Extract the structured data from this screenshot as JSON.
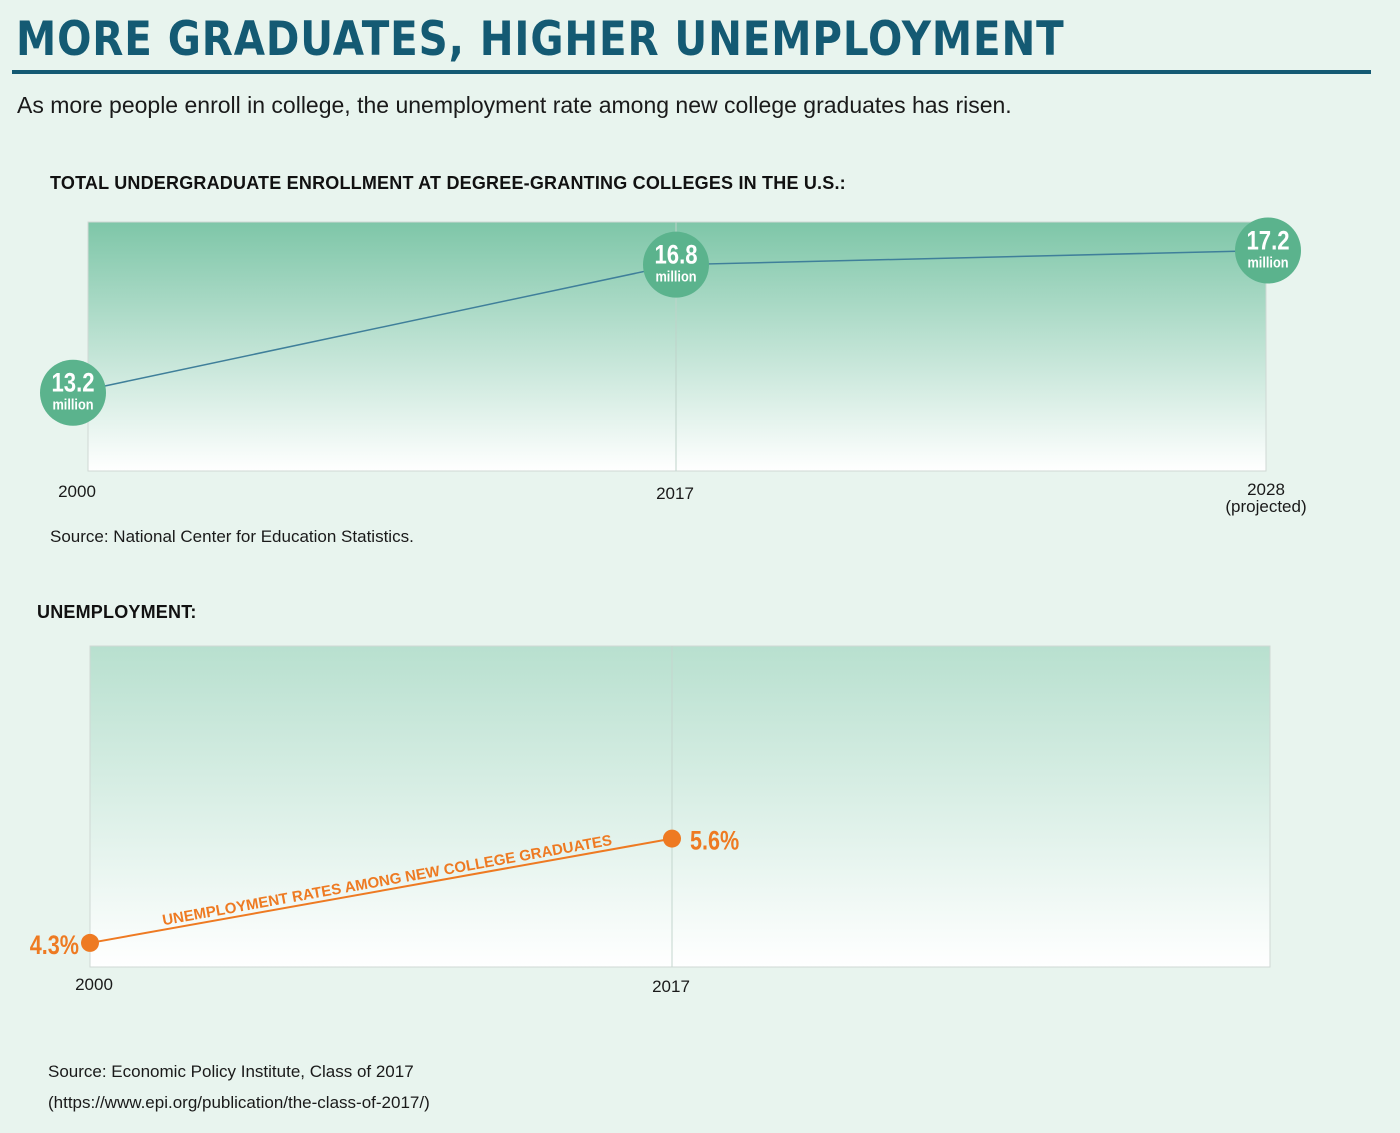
{
  "header": {
    "title": "MORE GRADUATES, HIGHER UNEMPLOYMENT",
    "subtitle": "As more people enroll in college, the unemployment rate among new college graduates has risen."
  },
  "enrollment": {
    "heading": "TOTAL UNDERGRADUATE ENROLLMENT AT DEGREE-GRANTING COLLEGES IN THE U.S.:",
    "source": "Source: National Center for Education Statistics."
  },
  "unemployment": {
    "heading": "UNEMPLOYMENT:",
    "source_line1": "Source: Economic Policy Institute, Class of 2017",
    "source_line2": "(https://www.epi.org/publication/the-class-of-2017/)"
  },
  "colors": {
    "title": "#145a73",
    "circle": "#5bb38d",
    "enrollment_line": "#3f7f9a",
    "unemployment": "#ee7a22"
  },
  "chart_data": [
    {
      "type": "line",
      "title": "TOTAL UNDERGRADUATE ENROLLMENT AT DEGREE-GRANTING COLLEGES IN THE U.S.:",
      "x": [
        "2000",
        "2017",
        "2028"
      ],
      "x_sublabels": [
        "",
        "",
        "(projected)"
      ],
      "values": [
        13.2,
        16.8,
        17.2
      ],
      "value_labels": [
        "13.2",
        "16.8",
        "17.2"
      ],
      "unit": "million",
      "ylim": [
        11,
        18
      ],
      "grid": "vertical lines at each year"
    },
    {
      "type": "line",
      "title": "UNEMPLOYMENT:",
      "x": [
        "2000",
        "2017"
      ],
      "values": [
        4.3,
        5.6
      ],
      "value_labels": [
        "4.3%",
        "5.6%"
      ],
      "series_label": "UNEMPLOYMENT RATES AMONG NEW COLLEGE GRADUATES",
      "ylim": [
        4.0,
        8.0
      ],
      "grid": "vertical line at 2017"
    }
  ]
}
